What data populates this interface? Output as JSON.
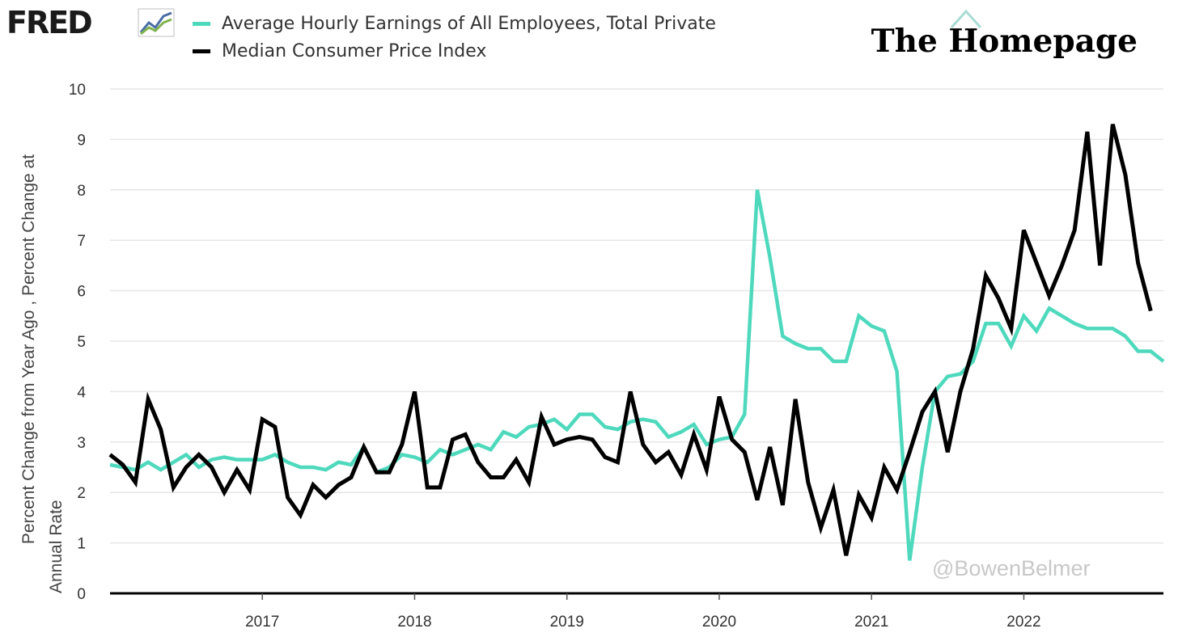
{
  "header": {
    "logo_text": "FRED",
    "logo_icon": "line-chart-icon",
    "brand": "The Homepage",
    "watermark": "@BowenBelmer"
  },
  "colors": {
    "earnings": "#4ed9bd",
    "cpi": "#000000",
    "grid": "#e6e6e6",
    "axis": "#000000"
  },
  "chart_data": {
    "type": "line",
    "ylabel_line1": "Percent Change from Year Ago , Percent Change at",
    "ylabel_line2": "Annual Rate",
    "ylim": [
      0,
      10
    ],
    "yticks": [
      "0",
      "1",
      "2",
      "3",
      "4",
      "5",
      "6",
      "7",
      "8",
      "9",
      "10"
    ],
    "xlim": [
      "2016-01",
      "2022-12"
    ],
    "xticks": [
      "2017",
      "2018",
      "2019",
      "2020",
      "2021",
      "2022"
    ],
    "grid": "horizontal",
    "legend_position": "top-left",
    "series": [
      {
        "name": "Average Hourly Earnings of All Employees, Total Private",
        "start": "2016-01",
        "frequency": "monthly",
        "values": [
          2.55,
          2.5,
          2.45,
          2.6,
          2.45,
          2.6,
          2.75,
          2.5,
          2.65,
          2.7,
          2.65,
          2.65,
          2.65,
          2.75,
          2.6,
          2.5,
          2.5,
          2.45,
          2.6,
          2.55,
          2.9,
          2.4,
          2.5,
          2.75,
          2.7,
          2.6,
          2.85,
          2.75,
          2.85,
          2.95,
          2.85,
          3.2,
          3.1,
          3.3,
          3.35,
          3.45,
          3.25,
          3.55,
          3.55,
          3.3,
          3.25,
          3.4,
          3.45,
          3.4,
          3.1,
          3.2,
          3.35,
          2.95,
          3.05,
          3.1,
          3.55,
          8.0,
          6.65,
          5.1,
          4.95,
          4.85,
          4.85,
          4.6,
          4.6,
          5.5,
          5.3,
          5.2,
          4.4,
          0.65,
          2.5,
          4.0,
          4.3,
          4.35,
          4.6,
          5.35,
          5.35,
          4.9,
          5.5,
          5.2,
          5.65,
          5.5,
          5.35,
          5.25,
          5.25,
          5.25,
          5.1,
          4.8,
          4.8,
          4.6
        ]
      },
      {
        "name": "Median Consumer Price Index",
        "start": "2016-01",
        "frequency": "monthly",
        "values": [
          2.75,
          2.55,
          2.2,
          3.85,
          3.25,
          2.1,
          2.5,
          2.75,
          2.5,
          2.0,
          2.45,
          2.05,
          3.45,
          3.3,
          1.9,
          1.55,
          2.15,
          1.9,
          2.15,
          2.3,
          2.9,
          2.4,
          2.4,
          2.95,
          4.0,
          2.1,
          2.1,
          3.05,
          3.15,
          2.6,
          2.3,
          2.3,
          2.65,
          2.2,
          3.5,
          2.95,
          3.05,
          3.1,
          3.05,
          2.7,
          2.6,
          4.0,
          2.95,
          2.6,
          2.8,
          2.35,
          3.15,
          2.45,
          3.9,
          3.05,
          2.8,
          1.85,
          2.9,
          1.75,
          3.85,
          2.2,
          1.3,
          2.05,
          0.75,
          1.95,
          1.5,
          2.5,
          2.05,
          2.8,
          3.6,
          4.0,
          2.8,
          4.0,
          4.85,
          6.3,
          5.85,
          5.25,
          7.2,
          6.55,
          5.9,
          6.5,
          7.2,
          9.15,
          6.5,
          9.3,
          8.3,
          6.55,
          5.6
        ]
      }
    ]
  }
}
